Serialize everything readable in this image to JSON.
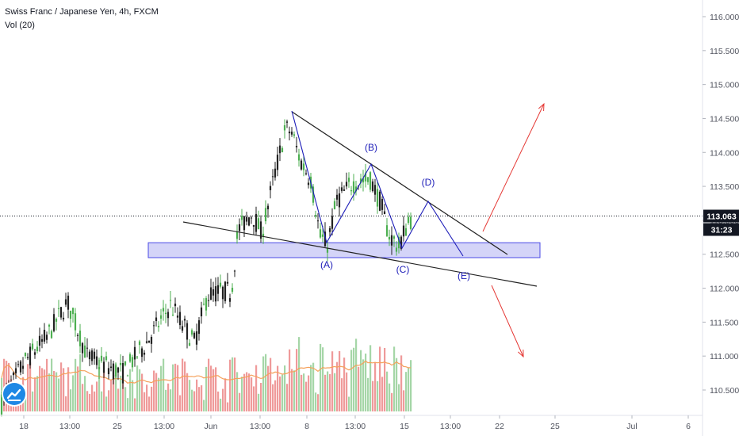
{
  "header": {
    "title": "Swiss Franc / Japanese Yen, 4h, FXCM",
    "indicator": "Vol (20)"
  },
  "colors": {
    "up": "#4caf50",
    "down": "#222222",
    "vol_up": "#a5d6a7",
    "vol_down": "#ef9a9a",
    "vol_ma": "#f5a05a",
    "pattern": "#1c1cb8",
    "zone_fill": "#c5c5f5",
    "zone_stroke": "#4a4ae6",
    "arrow": "#e53935",
    "trendline": "#222222",
    "price_badge": "#131722"
  },
  "price_axis": {
    "ticks": [
      "116.000",
      "115.500",
      "115.000",
      "114.500",
      "114.000",
      "113.500",
      "113.000",
      "112.500",
      "112.000",
      "111.500",
      "111.000",
      "110.500"
    ],
    "current_price": "113.063",
    "countdown": "31:23"
  },
  "time_axis": {
    "ticks": [
      "18",
      "13:00",
      "25",
      "13:00",
      "Jun",
      "13:00",
      "8",
      "13:00",
      "15",
      "13:00",
      "22",
      "25",
      "Jul",
      "6"
    ]
  },
  "chart_data": {
    "type": "candlestick",
    "title": "Swiss Franc / Japanese Yen, 4h, FXCM",
    "ylim": [
      110.2,
      116.3
    ],
    "current_price": 113.063,
    "support_zone": [
      112.45,
      112.67
    ],
    "wave_points": [
      {
        "label": "(A)",
        "price": 112.6
      },
      {
        "label": "(B)",
        "price": 113.8
      },
      {
        "label": "(C)",
        "price": 112.55
      },
      {
        "label": "(D)",
        "price": 113.28
      },
      {
        "label": "(E)",
        "price": 112.45
      }
    ],
    "upper_trendline": [
      114.6,
      112.45
    ],
    "lower_trendline": [
      112.95,
      112.05
    ],
    "breakout_targets": {
      "up": 114.8,
      "down": 110.96
    },
    "volume_indicator": "Vol (20)"
  }
}
